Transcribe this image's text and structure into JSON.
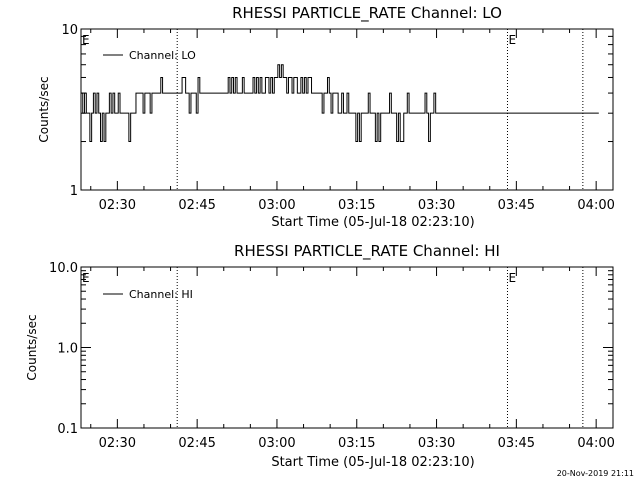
{
  "chart_data": [
    {
      "type": "line",
      "title": "RHESSI PARTICLE_RATE Channel: LO",
      "xlabel": "Start Time (05-Jul-18 02:23:10)",
      "ylabel": "Counts/sec",
      "yscale": "log",
      "ylim": [
        1,
        10
      ],
      "ytick_labels": [
        "1",
        "10"
      ],
      "xlim": [
        "02:23:10",
        "04:03:10"
      ],
      "xtick_labels": [
        "02:30",
        "02:45",
        "03:00",
        "03:15",
        "03:30",
        "03:45",
        "04:00"
      ],
      "legend": {
        "entries": [
          "Channel: LO"
        ],
        "placement": "top-left"
      },
      "grid": false,
      "event_marks": [
        {
          "label": "E",
          "time": "02:23:10"
        },
        {
          "label": "E",
          "time": "03:43:20"
        }
      ],
      "vlines": [
        "02:41:15",
        "03:43:20",
        "03:57:30"
      ],
      "series": [
        {
          "name": "Channel: LO",
          "x_start": "02:23:10",
          "x_step_seconds": 20,
          "values": [
            4,
            3,
            4,
            3,
            3,
            2,
            3,
            4,
            3,
            4,
            3,
            2,
            3,
            2,
            3,
            3,
            4,
            3,
            4,
            3,
            3,
            4,
            3,
            3,
            3,
            3,
            3,
            2,
            3,
            3,
            3,
            4,
            4,
            4,
            4,
            3,
            4,
            4,
            4,
            3,
            4,
            4,
            4,
            4,
            4,
            5,
            4,
            4,
            4,
            4,
            4,
            4,
            4,
            4,
            4,
            4,
            4,
            5,
            5,
            4,
            4,
            3,
            4,
            4,
            4,
            3,
            5,
            4,
            4,
            4,
            4,
            4,
            4,
            4,
            4,
            4,
            4,
            4,
            4,
            4,
            4,
            4,
            4,
            5,
            4,
            5,
            4,
            5,
            4,
            4,
            4,
            5,
            4,
            4,
            4,
            4,
            4,
            5,
            4,
            5,
            4,
            5,
            4,
            4,
            5,
            5,
            4,
            5,
            4,
            5,
            5,
            6,
            5,
            6,
            5,
            5,
            4,
            5,
            5,
            4,
            5,
            5,
            4,
            4,
            5,
            4,
            5,
            4,
            5,
            5,
            4,
            4,
            4,
            4,
            4,
            4,
            3,
            4,
            4,
            5,
            4,
            3,
            4,
            4,
            4,
            3,
            3,
            4,
            3,
            3,
            4,
            3,
            3,
            3,
            3,
            2,
            3,
            2,
            3,
            3,
            3,
            3,
            4,
            3,
            3,
            3,
            2,
            3,
            2,
            3,
            3,
            3,
            3,
            3,
            4,
            3,
            3,
            3,
            2,
            3,
            2,
            2,
            3,
            3,
            4,
            3,
            3,
            3,
            3,
            3,
            3,
            3,
            3,
            3,
            4,
            3,
            2,
            3,
            3,
            4,
            3,
            3,
            3,
            3,
            3,
            3,
            3,
            3,
            3,
            3,
            3,
            3,
            3,
            3,
            3,
            3,
            3,
            3,
            3,
            3,
            3,
            3,
            3,
            3,
            3,
            3,
            3,
            3,
            3,
            3,
            3,
            3,
            3,
            3,
            3,
            3,
            3,
            3,
            3,
            3,
            3,
            3,
            3,
            3,
            3,
            3,
            3,
            3,
            3,
            3,
            3,
            3,
            3,
            3,
            3,
            3,
            3,
            3,
            3,
            3,
            3,
            3,
            3,
            3,
            3,
            3,
            3,
            3,
            3,
            3,
            3,
            3,
            3,
            3,
            3,
            3,
            3,
            3,
            3,
            3,
            3,
            3,
            3,
            3,
            3,
            3,
            3,
            3,
            3,
            3,
            3,
            3
          ]
        }
      ]
    },
    {
      "type": "line",
      "title": "RHESSI PARTICLE_RATE Channel: HI",
      "xlabel": "Start Time (05-Jul-18 02:23:10)",
      "ylabel": "Counts/sec",
      "yscale": "log",
      "ylim": [
        0.1,
        10
      ],
      "ytick_labels": [
        "0.1",
        "1.0",
        "10.0"
      ],
      "xlim": [
        "02:23:10",
        "04:03:10"
      ],
      "xtick_labels": [
        "02:30",
        "02:45",
        "03:00",
        "03:15",
        "03:30",
        "03:45",
        "04:00"
      ],
      "legend": {
        "entries": [
          "Channel: HI"
        ],
        "placement": "top-left"
      },
      "grid": false,
      "event_marks": [
        {
          "label": "E",
          "time": "02:23:10"
        },
        {
          "label": "E",
          "time": "03:43:20"
        }
      ],
      "vlines": [
        "02:41:15",
        "03:43:20",
        "03:57:30"
      ],
      "series": [
        {
          "name": "Channel: HI",
          "values": []
        }
      ]
    }
  ],
  "footer": {
    "timestamp": "20-Nov-2019 21:11"
  },
  "colors": {
    "background": "#ffffff",
    "foreground": "#000000"
  }
}
